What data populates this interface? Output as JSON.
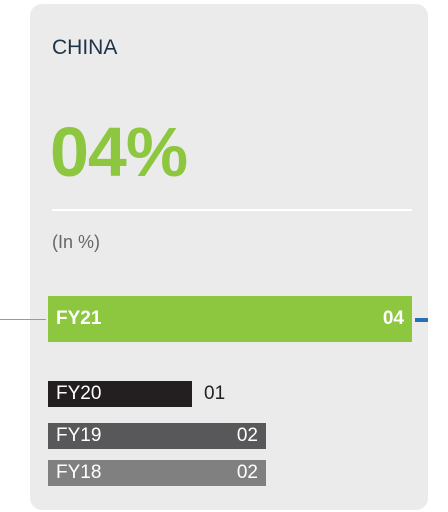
{
  "card": {
    "title": "CHINA",
    "value": "04%",
    "unit": "(In %)",
    "rows": [
      {
        "label": "FY21",
        "value": "04"
      },
      {
        "label": "FY20",
        "value": "01"
      },
      {
        "label": "FY19",
        "value": "02"
      },
      {
        "label": "FY18",
        "value": "02"
      }
    ]
  }
}
